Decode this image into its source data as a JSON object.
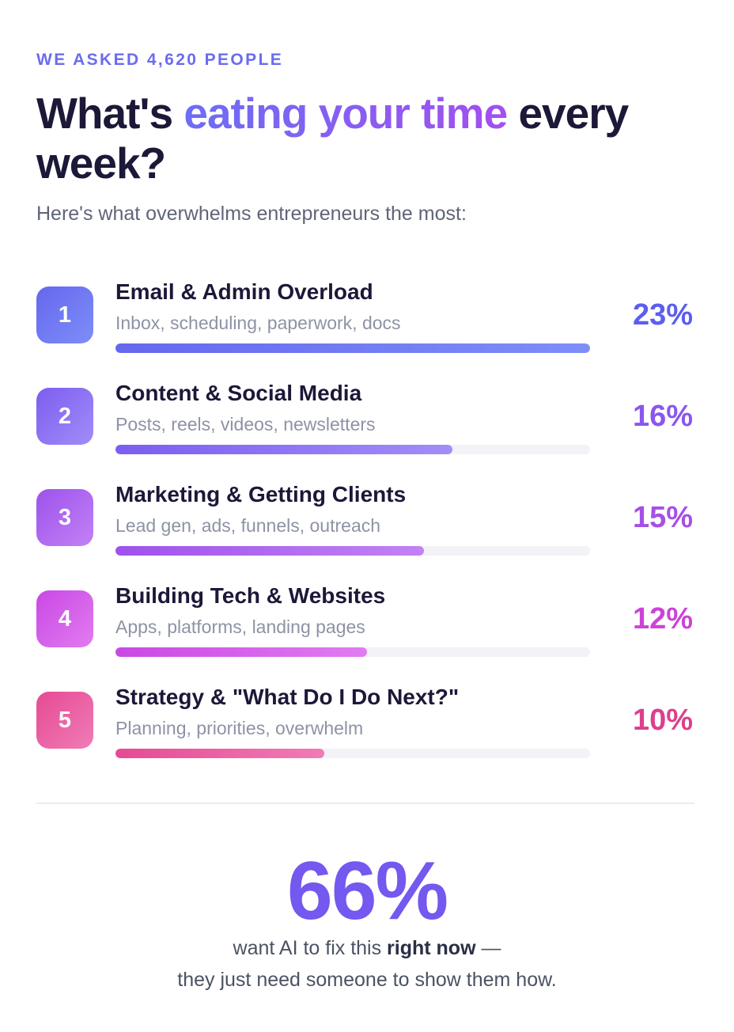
{
  "eyebrow": "WE ASKED 4,620 PEOPLE",
  "headline": {
    "before": "What's",
    "accent": "eating your time",
    "after": "every week?"
  },
  "subhead": "Here's what overwhelms entrepreneurs the most:",
  "colors": {
    "eyebrow": "#6b6cf0",
    "heading": "#1b1838",
    "muted": "#8d93a4",
    "stat": "#7458ef"
  },
  "chart_data": {
    "type": "bar",
    "orientation": "horizontal",
    "unit": "%",
    "items": [
      {
        "rank": "1",
        "title": "Email & Admin Overload",
        "description": "Inbox, scheduling, paperwork, docs",
        "value": 23,
        "value_label": "23%",
        "bar_fill": 1.0,
        "color_start": "#6567ee",
        "color_end": "#7e8ef8",
        "value_color": "#5c5df0"
      },
      {
        "rank": "2",
        "title": "Content & Social Media",
        "description": "Posts, reels, videos, newsletters",
        "value": 16,
        "value_label": "16%",
        "bar_fill": 0.71,
        "color_start": "#7c5df0",
        "color_end": "#a28df8",
        "value_color": "#8a56ee"
      },
      {
        "rank": "3",
        "title": "Marketing & Getting Clients",
        "description": "Lead gen, ads, funnels, outreach",
        "value": 15,
        "value_label": "15%",
        "bar_fill": 0.65,
        "color_start": "#9e52ec",
        "color_end": "#c282f5",
        "value_color": "#a64fe6"
      },
      {
        "rank": "4",
        "title": "Building Tech & Websites",
        "description": "Apps, platforms, landing pages",
        "value": 12,
        "value_label": "12%",
        "bar_fill": 0.53,
        "color_start": "#c948e4",
        "color_end": "#e27cf1",
        "value_color": "#cc43d8"
      },
      {
        "rank": "5",
        "title": "Strategy & \"What Do I Do Next?\"",
        "description": "Planning, priorities, overwhelm",
        "value": 10,
        "value_label": "10%",
        "bar_fill": 0.44,
        "color_start": "#e64a93",
        "color_end": "#f07cb6",
        "value_color": "#dc3f8d"
      }
    ]
  },
  "stat": {
    "value": "66%",
    "line1_before": "want AI to fix this ",
    "line1_strong": "right now",
    "line1_after": " —",
    "line2": "they just need someone to show them how."
  }
}
